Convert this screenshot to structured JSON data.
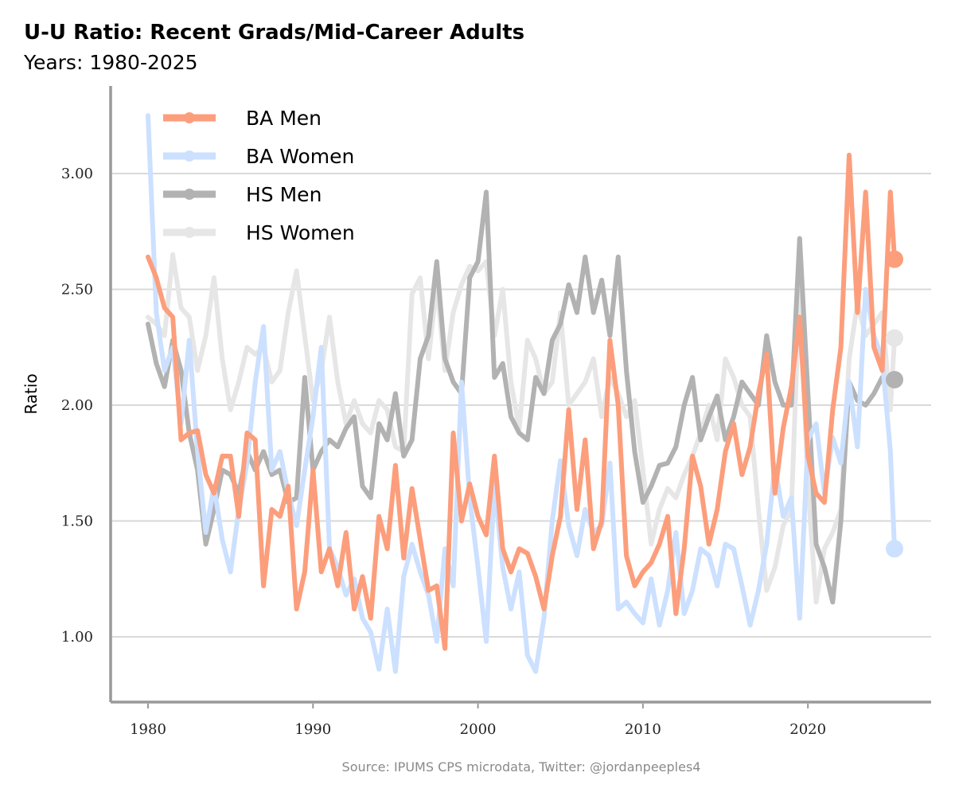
{
  "chart_data": {
    "type": "line",
    "title": "U-U Ratio: Recent Grads/Mid-Career Adults",
    "subtitle": "Years: 1980-2025",
    "xlabel": "",
    "ylabel": "Ratio",
    "xlim": [
      1980,
      2025.25
    ],
    "ylim": [
      0.75,
      3.25
    ],
    "xticks": [
      1980,
      1990,
      2000,
      2010,
      2020
    ],
    "xtick_labels": [
      "1980",
      "1990",
      "2000",
      "2010",
      "2020"
    ],
    "yticks": [
      1.0,
      1.5,
      2.0,
      2.5,
      3.0
    ],
    "ytick_labels": [
      "1.00",
      "1.50",
      "2.00",
      "2.50",
      "3.00"
    ],
    "grid": "horizontal",
    "legend_position": "top-left",
    "source": "Source: IPUMS CPS microdata, Twitter: @jordanpeeples4",
    "series": [
      {
        "name": "BA Men",
        "color": "#FC9E7C",
        "x": [
          1980,
          1980.5,
          1981,
          1981.5,
          1982,
          1982.5,
          1983,
          1983.5,
          1984,
          1984.5,
          1985,
          1985.5,
          1986,
          1986.5,
          1987,
          1987.5,
          1988,
          1988.5,
          1989,
          1989.5,
          1990,
          1990.5,
          1991,
          1991.5,
          1992,
          1992.5,
          1993,
          1993.5,
          1994,
          1994.5,
          1995,
          1995.5,
          1996,
          1996.5,
          1997,
          1997.5,
          1998,
          1998.5,
          1999,
          1999.5,
          2000,
          2000.5,
          2001,
          2001.5,
          2002,
          2002.5,
          2003,
          2003.5,
          2004,
          2004.5,
          2005,
          2005.5,
          2006,
          2006.5,
          2007,
          2007.5,
          2008,
          2008.5,
          2009,
          2009.5,
          2010,
          2010.5,
          2011,
          2011.5,
          2012,
          2012.5,
          2013,
          2013.5,
          2014,
          2014.5,
          2015,
          2015.5,
          2016,
          2016.5,
          2017,
          2017.5,
          2018,
          2018.5,
          2019,
          2019.5,
          2020,
          2020.5,
          2021,
          2021.5,
          2022,
          2022.5,
          2023,
          2023.5,
          2024,
          2024.5,
          2025,
          2025.25
        ],
        "values": [
          2.64,
          2.55,
          2.42,
          2.38,
          1.85,
          1.88,
          1.89,
          1.7,
          1.62,
          1.78,
          1.78,
          1.52,
          1.88,
          1.85,
          1.22,
          1.55,
          1.52,
          1.65,
          1.12,
          1.28,
          1.72,
          1.28,
          1.38,
          1.22,
          1.45,
          1.12,
          1.26,
          1.08,
          1.52,
          1.38,
          1.74,
          1.34,
          1.64,
          1.42,
          1.2,
          1.22,
          0.95,
          1.88,
          1.5,
          1.66,
          1.52,
          1.44,
          1.78,
          1.38,
          1.28,
          1.38,
          1.36,
          1.26,
          1.12,
          1.35,
          1.52,
          1.98,
          1.55,
          1.85,
          1.38,
          1.5,
          2.28,
          2.0,
          1.35,
          1.22,
          1.28,
          1.32,
          1.4,
          1.52,
          1.1,
          1.38,
          1.78,
          1.65,
          1.4,
          1.55,
          1.8,
          1.92,
          1.7,
          1.82,
          2.05,
          2.22,
          1.62,
          1.9,
          2.08,
          2.38,
          1.78,
          1.62,
          1.58,
          1.98,
          2.25,
          3.08,
          2.4,
          2.92,
          2.25,
          2.15,
          2.92,
          2.63
        ]
      },
      {
        "name": "BA Women",
        "color": "#CCE0FF",
        "x": [
          1980,
          1980.5,
          1981,
          1981.5,
          1982,
          1982.5,
          1983,
          1983.5,
          1984,
          1984.5,
          1985,
          1985.5,
          1986,
          1986.5,
          1987,
          1987.5,
          1988,
          1988.5,
          1989,
          1989.5,
          1990,
          1990.5,
          1991,
          1991.5,
          1992,
          1992.5,
          1993,
          1993.5,
          1994,
          1994.5,
          1995,
          1995.5,
          1996,
          1996.5,
          1997,
          1997.5,
          1998,
          1998.5,
          1999,
          1999.5,
          2000,
          2000.5,
          2001,
          2001.5,
          2002,
          2002.5,
          2003,
          2003.5,
          2004,
          2004.5,
          2005,
          2005.5,
          2006,
          2006.5,
          2007,
          2007.5,
          2008,
          2008.5,
          2009,
          2009.5,
          2010,
          2010.5,
          2011,
          2011.5,
          2012,
          2012.5,
          2013,
          2013.5,
          2014,
          2014.5,
          2015,
          2015.5,
          2016,
          2016.5,
          2017,
          2017.5,
          2018,
          2018.5,
          2019,
          2019.5,
          2020,
          2020.5,
          2021,
          2021.5,
          2022,
          2022.5,
          2023,
          2023.5,
          2024,
          2024.5,
          2025,
          2025.25
        ],
        "values": [
          3.25,
          2.4,
          2.15,
          2.25,
          1.92,
          2.28,
          1.8,
          1.45,
          1.65,
          1.42,
          1.28,
          1.55,
          1.75,
          2.1,
          2.34,
          1.72,
          1.8,
          1.62,
          1.48,
          1.72,
          1.95,
          2.25,
          1.38,
          1.3,
          1.18,
          1.25,
          1.08,
          1.02,
          0.86,
          1.12,
          0.85,
          1.26,
          1.4,
          1.28,
          1.18,
          0.98,
          1.38,
          1.22,
          2.1,
          1.6,
          1.3,
          0.98,
          1.66,
          1.3,
          1.12,
          1.28,
          0.92,
          0.85,
          1.08,
          1.5,
          1.76,
          1.48,
          1.35,
          1.55,
          1.45,
          1.48,
          1.75,
          1.12,
          1.15,
          1.1,
          1.06,
          1.25,
          1.05,
          1.2,
          1.45,
          1.1,
          1.2,
          1.38,
          1.35,
          1.22,
          1.4,
          1.38,
          1.22,
          1.05,
          1.2,
          1.4,
          1.74,
          1.52,
          1.6,
          1.08,
          1.85,
          1.92,
          1.62,
          1.86,
          1.75,
          2.1,
          1.82,
          2.5,
          2.3,
          2.2,
          1.8,
          1.38
        ]
      },
      {
        "name": "HS Men",
        "color": "#B2B2B2",
        "x": [
          1980,
          1980.5,
          1981,
          1981.5,
          1982,
          1982.5,
          1983,
          1983.5,
          1984,
          1984.5,
          1985,
          1985.5,
          1986,
          1986.5,
          1987,
          1987.5,
          1988,
          1988.5,
          1989,
          1989.5,
          1990,
          1990.5,
          1991,
          1991.5,
          1992,
          1992.5,
          1993,
          1993.5,
          1994,
          1994.5,
          1995,
          1995.5,
          1996,
          1996.5,
          1997,
          1997.5,
          1998,
          1998.5,
          1999,
          1999.5,
          2000,
          2000.5,
          2001,
          2001.5,
          2002,
          2002.5,
          2003,
          2003.5,
          2004,
          2004.5,
          2005,
          2005.5,
          2006,
          2006.5,
          2007,
          2007.5,
          2008,
          2008.5,
          2009,
          2009.5,
          2010,
          2010.5,
          2011,
          2011.5,
          2012,
          2012.5,
          2013,
          2013.5,
          2014,
          2014.5,
          2015,
          2015.5,
          2016,
          2016.5,
          2017,
          2017.5,
          2018,
          2018.5,
          2019,
          2019.5,
          2020,
          2020.5,
          2021,
          2021.5,
          2022,
          2022.5,
          2023,
          2023.5,
          2024,
          2024.5,
          2025,
          2025.25
        ],
        "values": [
          2.35,
          2.18,
          2.08,
          2.28,
          2.15,
          1.88,
          1.72,
          1.4,
          1.55,
          1.72,
          1.7,
          1.62,
          1.8,
          1.72,
          1.8,
          1.7,
          1.72,
          1.58,
          1.6,
          2.12,
          1.72,
          1.8,
          1.85,
          1.82,
          1.9,
          1.95,
          1.65,
          1.6,
          1.92,
          1.85,
          2.05,
          1.78,
          1.85,
          2.2,
          2.3,
          2.62,
          2.2,
          2.1,
          2.05,
          2.55,
          2.62,
          2.92,
          2.12,
          2.18,
          1.95,
          1.88,
          1.85,
          2.12,
          2.05,
          2.28,
          2.35,
          2.52,
          2.4,
          2.64,
          2.4,
          2.54,
          2.3,
          2.64,
          2.15,
          1.8,
          1.58,
          1.65,
          1.74,
          1.75,
          1.82,
          2.0,
          2.12,
          1.85,
          1.95,
          2.04,
          1.85,
          1.95,
          2.1,
          2.05,
          2.0,
          2.3,
          2.1,
          2.0,
          2.0,
          2.72,
          2.05,
          1.4,
          1.3,
          1.15,
          1.5,
          2.1,
          2.02,
          2.0,
          2.05,
          2.12,
          2.1,
          2.11
        ]
      },
      {
        "name": "HS Women",
        "color": "#E6E6E6",
        "x": [
          1980,
          1980.5,
          1981,
          1981.5,
          1982,
          1982.5,
          1983,
          1983.5,
          1984,
          1984.5,
          1985,
          1985.5,
          1986,
          1986.5,
          1987,
          1987.5,
          1988,
          1988.5,
          1989,
          1989.5,
          1990,
          1990.5,
          1991,
          1991.5,
          1992,
          1992.5,
          1993,
          1993.5,
          1994,
          1994.5,
          1995,
          1995.5,
          1996,
          1996.5,
          1997,
          1997.5,
          1998,
          1998.5,
          1999,
          1999.5,
          2000,
          2000.5,
          2001,
          2001.5,
          2002,
          2002.5,
          2003,
          2003.5,
          2004,
          2004.5,
          2005,
          2005.5,
          2006,
          2006.5,
          2007,
          2007.5,
          2008,
          2008.5,
          2009,
          2009.5,
          2010,
          2010.5,
          2011,
          2011.5,
          2012,
          2012.5,
          2013,
          2013.5,
          2014,
          2014.5,
          2015,
          2015.5,
          2016,
          2016.5,
          2017,
          2017.5,
          2018,
          2018.5,
          2019,
          2019.5,
          2020,
          2020.5,
          2021,
          2021.5,
          2022,
          2022.5,
          2023,
          2023.5,
          2024,
          2024.5,
          2025,
          2025.25
        ],
        "values": [
          2.38,
          2.35,
          2.3,
          2.65,
          2.42,
          2.38,
          2.15,
          2.3,
          2.55,
          2.2,
          1.98,
          2.1,
          2.25,
          2.22,
          2.25,
          2.1,
          2.15,
          2.4,
          2.58,
          2.3,
          2.02,
          2.15,
          2.38,
          2.1,
          1.92,
          2.02,
          1.92,
          1.88,
          2.02,
          1.98,
          1.82,
          1.8,
          2.48,
          2.55,
          2.2,
          2.52,
          2.15,
          2.4,
          2.52,
          2.6,
          2.58,
          2.62,
          2.3,
          2.5,
          2.1,
          1.9,
          2.28,
          2.2,
          2.05,
          2.1,
          2.4,
          2.0,
          2.05,
          2.1,
          2.2,
          1.95,
          2.12,
          2.05,
          1.95,
          2.02,
          1.72,
          1.4,
          1.55,
          1.64,
          1.6,
          1.7,
          1.78,
          1.88,
          2.0,
          1.85,
          2.2,
          2.12,
          2.0,
          1.95,
          1.55,
          1.2,
          1.3,
          1.48,
          1.55,
          2.52,
          1.65,
          1.15,
          1.38,
          1.45,
          1.55,
          2.2,
          2.44,
          2.3,
          2.35,
          2.4,
          1.98,
          2.29
        ]
      }
    ]
  }
}
